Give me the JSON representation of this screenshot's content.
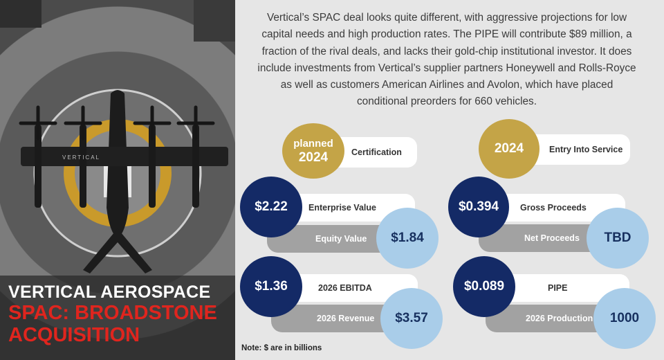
{
  "header": {
    "company": "VERTICAL AEROSPACE",
    "spac": "SPAC: BROADSTONE ACQUISITION"
  },
  "photo": {
    "aircraft_label": "VERTICAL"
  },
  "intro_text": "Vertical’s SPAC deal looks quite different, with aggressive projections for low capital needs and high production rates. The PIPE will contribute $89 million, a fraction of the rival deals, and lacks their gold-chip institutional investor. It does include investments from Vertical’s supplier partners Honeywell and Rolls-Royce as well as customers American Airlines and Avolon, which have placed conditional preorders for 660 vehicles.",
  "milestones": {
    "certification": {
      "line1": "planned",
      "line2": "2024",
      "label": "Certification"
    },
    "entry_into_service": {
      "value": "2024",
      "label": "Entry Into Service"
    }
  },
  "metrics": {
    "enterprise_value": {
      "value": "$2.22",
      "label": "Enterprise Value"
    },
    "equity_value": {
      "value": "$1.84",
      "label": "Equity Value"
    },
    "gross_proceeds": {
      "value": "$0.394",
      "label": "Gross Proceeds"
    },
    "net_proceeds": {
      "value": "TBD",
      "label": "Net Proceeds"
    },
    "ebitda_2026": {
      "value": "$1.36",
      "label": "2026 EBITDA"
    },
    "revenue_2026": {
      "value": "$3.57",
      "label": "2026 Revenue"
    },
    "pipe": {
      "value": "$0.089",
      "label": "PIPE"
    },
    "production_2026": {
      "value": "1000",
      "label": "2026 Production"
    }
  },
  "note": "Note: $ are in billions",
  "colors": {
    "gold": "#c4a447",
    "navy": "#142a66",
    "light_blue": "#a9cde9",
    "accent_red": "#e0251e",
    "grey_pill": "#a2a2a2"
  }
}
